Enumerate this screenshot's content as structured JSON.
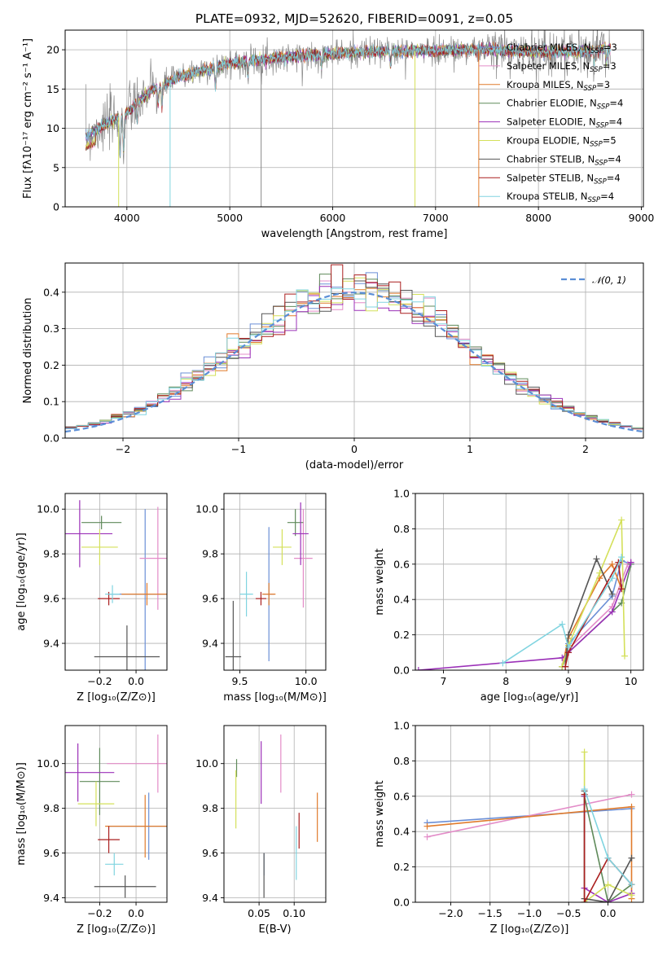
{
  "colors": {
    "chabrier_miles": "#6b8fd6",
    "salpeter_miles": "#e38cc8",
    "kroupa_miles": "#e07b2c",
    "chabrier_elodie": "#5f8a5a",
    "salpeter_elodie": "#9b30b8",
    "kroupa_elodie": "#d4e05a",
    "chabrier_stelib": "#555555",
    "salpeter_stelib": "#aa1f1f",
    "kroupa_stelib": "#80d4e0",
    "data": "#888888",
    "normal": "#5b8ed6"
  },
  "chart_data": [
    {
      "id": "spectrum",
      "type": "line",
      "title": "PLATE=0932, MJD=52620, FIBERID=0091, z=0.05",
      "xlabel": "wavelength [Angstrom, rest frame]",
      "ylabel": "Flux [fλ10⁻¹⁷ erg cm⁻² s⁻¹ A⁻¹]",
      "xlim": [
        3400,
        9020
      ],
      "ylim": [
        0,
        22.5
      ],
      "xticks": [
        4000,
        5000,
        6000,
        7000,
        8000,
        9000
      ],
      "yticks": [
        0,
        5,
        10,
        15,
        20
      ],
      "legend_position": "top-right",
      "continuum": [
        [
          3600,
          9.0
        ],
        [
          3800,
          10.5
        ],
        [
          4000,
          12.0
        ],
        [
          4200,
          14.5
        ],
        [
          4500,
          16.5
        ],
        [
          5000,
          18.3
        ],
        [
          5500,
          19.0
        ],
        [
          6000,
          19.5
        ],
        [
          6500,
          19.8
        ],
        [
          7000,
          19.9
        ],
        [
          7500,
          20.0
        ],
        [
          8000,
          19.7
        ],
        [
          8500,
          19.8
        ],
        [
          8700,
          20.3
        ]
      ],
      "series": [
        {
          "name": "Chabrier MILES, N$_{SSP}$=3",
          "label_main": "Chabrier MILES, N",
          "label_sub": "SSP",
          "label_end": "=3",
          "color_key": "chabrier_miles"
        },
        {
          "name": "Salpeter MILES, N$_{SSP}$=3",
          "label_main": "Salpeter MILES, N",
          "label_sub": "SSP",
          "label_end": "=3",
          "color_key": "salpeter_miles"
        },
        {
          "name": "Kroupa MILES, N$_{SSP}$=3",
          "label_main": "Kroupa MILES, N",
          "label_sub": "SSP",
          "label_end": "=3",
          "color_key": "kroupa_miles"
        },
        {
          "name": "Chabrier ELODIE, N$_{SSP}$=4",
          "label_main": "Chabrier ELODIE, N",
          "label_sub": "SSP",
          "label_end": "=4",
          "color_key": "chabrier_elodie"
        },
        {
          "name": "Salpeter ELODIE, N$_{SSP}$=4",
          "label_main": "Salpeter ELODIE, N",
          "label_sub": "SSP",
          "label_end": "=4",
          "color_key": "salpeter_elodie"
        },
        {
          "name": "Kroupa ELODIE, N$_{SSP}$=5",
          "label_main": "Kroupa ELODIE, N",
          "label_sub": "SSP",
          "label_end": "=5",
          "color_key": "kroupa_elodie"
        },
        {
          "name": "Chabrier STELIB, N$_{SSP}$=4",
          "label_main": "Chabrier STELIB, N",
          "label_sub": "SSP",
          "label_end": "=4",
          "color_key": "chabrier_stelib"
        },
        {
          "name": "Salpeter STELIB, N$_{SSP}$=4",
          "label_main": "Salpeter STELIB, N",
          "label_sub": "SSP",
          "label_end": "=4",
          "color_key": "salpeter_stelib"
        },
        {
          "name": "Kroupa STELIB, N$_{SSP}$=4",
          "label_main": "Kroupa STELIB, N",
          "label_sub": "SSP",
          "label_end": "=4",
          "color_key": "kroupa_stelib"
        }
      ]
    },
    {
      "id": "residuals",
      "type": "step",
      "xlabel": "(data-model)/error",
      "ylabel": "Normed distribution",
      "xlim": [
        -2.5,
        2.5
      ],
      "ylim": [
        0,
        0.48
      ],
      "xticks": [
        -2,
        -1,
        0,
        1,
        2
      ],
      "yticks": [
        0.0,
        0.1,
        0.2,
        0.3,
        0.4
      ],
      "bin_width": 0.1,
      "legend": "𝒩(0, 1)",
      "legend_position": "top-right"
    },
    {
      "id": "age_vs_z",
      "type": "errorbar",
      "xlabel": "Z [log₁₀(Z/Z⊙)]",
      "ylabel": "age  [log₁₀(age/yr)]",
      "xlim": [
        -0.39,
        0.17
      ],
      "ylim": [
        9.28,
        10.07
      ],
      "xticks": [
        -0.2,
        0.0
      ],
      "yticks": [
        9.4,
        9.6,
        9.8,
        10.0
      ],
      "points": [
        {
          "key": "chabrier_miles",
          "x": 0.05,
          "xerr": 0.2,
          "y": 9.62,
          "yerr": 0.38
        },
        {
          "key": "salpeter_miles",
          "x": 0.12,
          "xerr": 0.1,
          "y": 9.78,
          "yerr": 0.23
        },
        {
          "key": "kroupa_miles",
          "x": 0.06,
          "xerr": 0.14,
          "y": 9.62,
          "yerr": 0.05
        },
        {
          "key": "chabrier_elodie",
          "x": -0.19,
          "xerr": 0.11,
          "y": 9.94,
          "yerr": 0.03
        },
        {
          "key": "salpeter_elodie",
          "x": -0.31,
          "xerr": 0.18,
          "y": 9.89,
          "yerr": 0.15
        },
        {
          "key": "kroupa_elodie",
          "x": -0.2,
          "xerr": 0.1,
          "y": 9.83,
          "yerr": 0.08
        },
        {
          "key": "chabrier_stelib",
          "x": -0.05,
          "xerr": 0.18,
          "y": 9.34,
          "yerr": 0.14
        },
        {
          "key": "salpeter_stelib",
          "x": -0.15,
          "xerr": 0.06,
          "y": 9.6,
          "yerr": 0.03
        },
        {
          "key": "kroupa_stelib",
          "x": -0.13,
          "xerr": 0.04,
          "y": 9.62,
          "yerr": 0.04
        }
      ]
    },
    {
      "id": "age_vs_mass",
      "type": "errorbar",
      "xlabel": "mass [log₁₀(M/M⊙)]",
      "ylabel": "",
      "xlim": [
        9.38,
        10.15
      ],
      "ylim": [
        9.28,
        10.07
      ],
      "xticks": [
        9.5,
        10.0
      ],
      "yticks": [
        9.4,
        9.6,
        9.8,
        10.0
      ],
      "points": [
        {
          "key": "chabrier_miles",
          "x": 9.72,
          "xerr": 0.04,
          "y": 9.62,
          "yerr": 0.3
        },
        {
          "key": "salpeter_miles",
          "x": 9.98,
          "xerr": 0.07,
          "y": 9.78,
          "yerr": 0.22
        },
        {
          "key": "kroupa_miles",
          "x": 9.72,
          "xerr": 0.05,
          "y": 9.62,
          "yerr": 0.05
        },
        {
          "key": "chabrier_elodie",
          "x": 9.92,
          "xerr": 0.06,
          "y": 9.94,
          "yerr": 0.06
        },
        {
          "key": "salpeter_elodie",
          "x": 9.96,
          "xerr": 0.06,
          "y": 9.89,
          "yerr": 0.14
        },
        {
          "key": "kroupa_elodie",
          "x": 9.82,
          "xerr": 0.07,
          "y": 9.83,
          "yerr": 0.08
        },
        {
          "key": "chabrier_stelib",
          "x": 9.45,
          "xerr": 0.06,
          "y": 9.34,
          "yerr": 0.25
        },
        {
          "key": "salpeter_stelib",
          "x": 9.66,
          "xerr": 0.04,
          "y": 9.6,
          "yerr": 0.03
        },
        {
          "key": "kroupa_stelib",
          "x": 9.55,
          "xerr": 0.05,
          "y": 9.62,
          "yerr": 0.1
        }
      ]
    },
    {
      "id": "weight_vs_age",
      "type": "line",
      "xlabel": "age  [log₁₀(age/yr)]",
      "ylabel": "mass weight",
      "xlim": [
        6.55,
        10.2
      ],
      "ylim": [
        0,
        1.0
      ],
      "xticks": [
        7,
        8,
        9,
        10
      ],
      "yticks": [
        0.0,
        0.2,
        0.4,
        0.6,
        0.8,
        1.0
      ],
      "series": [
        {
          "key": "chabrier_miles",
          "x": [
            8.9,
            9.0,
            9.7,
            9.85,
            10.0
          ],
          "y": [
            0.02,
            0.15,
            0.42,
            0.62,
            0.6
          ]
        },
        {
          "key": "salpeter_miles",
          "x": [
            8.95,
            9.0,
            9.7,
            9.95,
            10.0
          ],
          "y": [
            0.02,
            0.12,
            0.36,
            0.6,
            0.61
          ]
        },
        {
          "key": "kroupa_miles",
          "x": [
            8.9,
            9.0,
            9.5,
            9.7,
            9.85
          ],
          "y": [
            0.02,
            0.18,
            0.52,
            0.6,
            0.46
          ]
        },
        {
          "key": "chabrier_elodie",
          "x": [
            8.9,
            9.0,
            9.85,
            10.0
          ],
          "y": [
            0.02,
            0.1,
            0.38,
            0.6
          ]
        },
        {
          "key": "salpeter_elodie",
          "x": [
            6.6,
            8.9,
            9.0,
            9.7,
            10.0
          ],
          "y": [
            0.0,
            0.07,
            0.1,
            0.33,
            0.61
          ]
        },
        {
          "key": "kroupa_elodie",
          "x": [
            8.9,
            9.0,
            9.5,
            9.85,
            9.9
          ],
          "y": [
            0.02,
            0.14,
            0.55,
            0.85,
            0.08
          ]
        },
        {
          "key": "chabrier_stelib",
          "x": [
            8.95,
            9.0,
            9.45,
            9.7
          ],
          "y": [
            0.02,
            0.2,
            0.63,
            0.43
          ]
        },
        {
          "key": "salpeter_stelib",
          "x": [
            8.95,
            9.0,
            9.8,
            9.85
          ],
          "y": [
            0.02,
            0.1,
            0.61,
            0.46
          ]
        },
        {
          "key": "kroupa_stelib",
          "x": [
            7.95,
            8.9,
            9.0,
            9.7,
            9.85
          ],
          "y": [
            0.04,
            0.26,
            0.13,
            0.52,
            0.64
          ]
        }
      ]
    },
    {
      "id": "mass_vs_z",
      "type": "errorbar",
      "xlabel": "Z [log₁₀(Z/Z⊙)]",
      "ylabel": "mass [log₁₀(M/M⊙)]",
      "xlim": [
        -0.39,
        0.17
      ],
      "ylim": [
        9.38,
        10.17
      ],
      "xticks": [
        -0.2,
        0.0
      ],
      "yticks": [
        9.4,
        9.6,
        9.8,
        10.0
      ],
      "points": [
        {
          "key": "chabrier_miles",
          "x": 0.07,
          "xerr": 0.22,
          "y": 9.72,
          "yerr": 0.15
        },
        {
          "key": "salpeter_miles",
          "x": 0.12,
          "xerr": 0.28,
          "y": 10.0,
          "yerr": 0.13
        },
        {
          "key": "kroupa_miles",
          "x": 0.05,
          "xerr": 0.22,
          "y": 9.72,
          "yerr": 0.14
        },
        {
          "key": "chabrier_elodie",
          "x": -0.2,
          "xerr": 0.11,
          "y": 9.92,
          "yerr": 0.15
        },
        {
          "key": "salpeter_elodie",
          "x": -0.32,
          "xerr": 0.2,
          "y": 9.96,
          "yerr": 0.13
        },
        {
          "key": "kroupa_elodie",
          "x": -0.22,
          "xerr": 0.1,
          "y": 9.82,
          "yerr": 0.1
        },
        {
          "key": "chabrier_stelib",
          "x": -0.06,
          "xerr": 0.17,
          "y": 9.45,
          "yerr": 0.05
        },
        {
          "key": "salpeter_stelib",
          "x": -0.15,
          "xerr": 0.06,
          "y": 9.66,
          "yerr": 0.06
        },
        {
          "key": "kroupa_stelib",
          "x": -0.12,
          "xerr": 0.05,
          "y": 9.55,
          "yerr": 0.05
        }
      ]
    },
    {
      "id": "mass_vs_ebv",
      "type": "errorbar",
      "xlabel": "E(B-V)",
      "ylabel": "",
      "xlim": [
        0.0,
        0.145
      ],
      "ylim": [
        9.38,
        10.17
      ],
      "xticks": [
        0.05,
        0.1
      ],
      "yticks": [
        9.4,
        9.6,
        9.8,
        10.0
      ],
      "points": [
        {
          "key": "chabrier_miles",
          "x": 0.057,
          "xerr": 0.0,
          "y": 9.55,
          "yerr": 0.05
        },
        {
          "key": "salpeter_miles",
          "x": 0.081,
          "xerr": 0.0,
          "y": 10.0,
          "yerr": 0.13
        },
        {
          "key": "kroupa_miles",
          "x": 0.133,
          "xerr": 0.0,
          "y": 9.76,
          "yerr": 0.11
        },
        {
          "key": "chabrier_elodie",
          "x": 0.018,
          "xerr": 0.0,
          "y": 9.98,
          "yerr": 0.04
        },
        {
          "key": "salpeter_elodie",
          "x": 0.053,
          "xerr": 0.0,
          "y": 9.96,
          "yerr": 0.14
        },
        {
          "key": "kroupa_elodie",
          "x": 0.017,
          "xerr": 0.0,
          "y": 9.84,
          "yerr": 0.13
        },
        {
          "key": "chabrier_stelib",
          "x": 0.057,
          "xerr": 0.0,
          "y": 9.5,
          "yerr": 0.1
        },
        {
          "key": "salpeter_stelib",
          "x": 0.107,
          "xerr": 0.0,
          "y": 9.7,
          "yerr": 0.08
        },
        {
          "key": "kroupa_stelib",
          "x": 0.103,
          "xerr": 0.0,
          "y": 9.6,
          "yerr": 0.12
        }
      ]
    },
    {
      "id": "weight_vs_z",
      "type": "line",
      "xlabel": "Z [log₁₀(Z/Z⊙)]",
      "ylabel": "mass weight",
      "xlim": [
        -2.45,
        0.45
      ],
      "ylim": [
        0,
        1.0
      ],
      "xticks": [
        -2.0,
        -1.5,
        -1.0,
        -0.5,
        0.0
      ],
      "yticks": [
        0.0,
        0.2,
        0.4,
        0.6,
        0.8,
        1.0
      ],
      "series": [
        {
          "key": "chabrier_miles",
          "x": [
            -2.3,
            0.3
          ],
          "y": [
            0.45,
            0.53
          ]
        },
        {
          "key": "salpeter_miles",
          "x": [
            -2.3,
            0.3
          ],
          "y": [
            0.37,
            0.61
          ]
        },
        {
          "key": "kroupa_miles",
          "x": [
            -2.3,
            0.3,
            0.3
          ],
          "y": [
            0.43,
            0.54,
            0.02
          ]
        },
        {
          "key": "chabrier_elodie",
          "x": [
            -0.3,
            0.0,
            0.3
          ],
          "y": [
            0.6,
            0.0,
            0.1
          ]
        },
        {
          "key": "salpeter_elodie",
          "x": [
            -0.3,
            -0.3,
            0.0,
            0.3
          ],
          "y": [
            0.6,
            0.08,
            0.0,
            0.05
          ]
        },
        {
          "key": "kroupa_elodie",
          "x": [
            -0.3,
            -0.3,
            0.0,
            0.3
          ],
          "y": [
            0.85,
            0.0,
            0.1,
            0.04
          ]
        },
        {
          "key": "chabrier_stelib",
          "x": [
            -0.3,
            -0.3,
            0.0,
            0.3
          ],
          "y": [
            0.63,
            0.02,
            0.0,
            0.25
          ]
        },
        {
          "key": "salpeter_stelib",
          "x": [
            -0.3,
            -0.3,
            0.0,
            0.3
          ],
          "y": [
            0.61,
            0.0,
            0.25,
            0.1
          ]
        },
        {
          "key": "kroupa_stelib",
          "x": [
            -0.3,
            0.0,
            0.3
          ],
          "y": [
            0.64,
            0.25,
            0.1
          ]
        }
      ]
    }
  ]
}
